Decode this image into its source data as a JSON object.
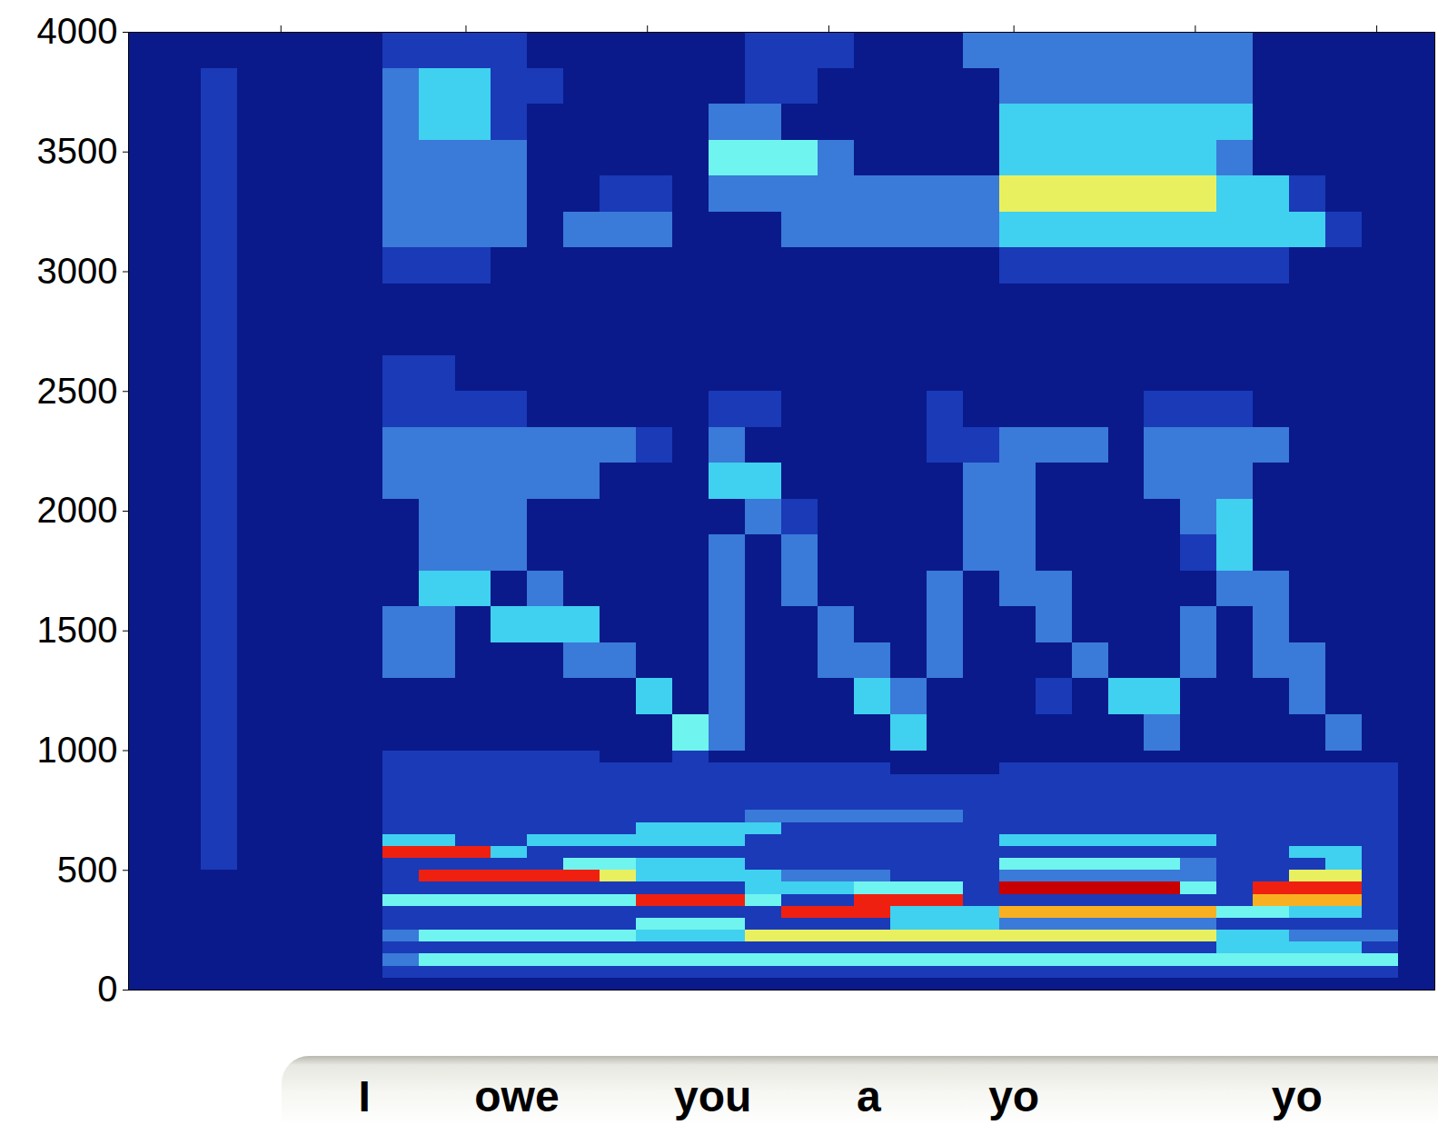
{
  "chart_data": {
    "type": "heatmap",
    "tick_labels": "y",
    "grid": false,
    "xlim": [
      0,
      36
    ],
    "xticks": [
      4.2,
      9.3,
      14.3,
      19.3,
      24.4,
      29.4,
      34.4
    ],
    "ylim": [
      0,
      4000
    ],
    "yticks": [
      0,
      500,
      1000,
      1500,
      2000,
      2500,
      3000,
      3500,
      4000
    ],
    "value_range": [
      0,
      10
    ],
    "time_bins": [
      0,
      1,
      2,
      3,
      4,
      5,
      6,
      7,
      8,
      9,
      10,
      11,
      12,
      13,
      14,
      15,
      16,
      17,
      18,
      19,
      20,
      21,
      22,
      23,
      24,
      25,
      26,
      27,
      28,
      29,
      30,
      31,
      32,
      33,
      34,
      35,
      36
    ],
    "freq_bins": [
      0,
      50,
      100,
      150,
      200,
      250,
      300,
      350,
      400,
      450,
      500,
      550,
      600,
      650,
      700,
      750,
      800,
      850,
      900,
      950,
      1000,
      1150,
      1300,
      1450,
      1600,
      1750,
      1900,
      2050,
      2200,
      2350,
      2500,
      2650,
      2800,
      2950,
      3100,
      3250,
      3400,
      3550,
      3700,
      3850,
      4000
    ],
    "cells": [
      [
        1,
        1,
        1,
        1,
        1,
        1,
        1,
        1,
        1,
        1,
        1,
        1,
        1,
        1,
        1,
        1,
        1,
        1,
        1,
        1,
        1,
        1,
        1,
        1,
        1,
        1,
        1,
        1,
        1,
        1,
        1,
        1,
        1,
        1,
        1,
        1
      ],
      [
        1,
        1,
        1,
        1,
        1,
        1,
        1,
        2,
        2,
        2,
        2,
        2,
        2,
        2,
        2,
        2,
        2,
        2,
        2,
        2,
        2,
        2,
        2,
        2,
        2,
        2,
        2,
        2,
        2,
        2,
        2,
        2,
        2,
        2,
        2,
        1
      ],
      [
        1,
        1,
        1,
        1,
        1,
        1,
        1,
        3,
        5,
        5,
        5,
        5,
        5,
        5,
        5,
        5,
        5,
        5,
        5,
        5,
        5,
        5,
        5,
        5,
        5,
        5,
        5,
        5,
        5,
        5,
        5,
        5,
        5,
        5,
        5,
        1
      ],
      [
        1,
        1,
        1,
        1,
        1,
        1,
        1,
        2,
        2,
        2,
        2,
        2,
        2,
        2,
        2,
        2,
        2,
        2,
        2,
        2,
        2,
        2,
        2,
        2,
        2,
        2,
        2,
        2,
        2,
        2,
        4,
        4,
        4,
        4,
        2,
        1
      ],
      [
        1,
        1,
        1,
        1,
        1,
        1,
        1,
        3,
        5,
        5,
        5,
        5,
        5,
        5,
        4,
        4,
        4,
        6,
        6,
        6,
        6,
        6,
        6,
        6,
        6,
        6,
        6,
        6,
        6,
        6,
        4,
        4,
        3,
        3,
        3,
        1
      ],
      [
        1,
        1,
        1,
        1,
        1,
        1,
        1,
        2,
        2,
        2,
        2,
        2,
        2,
        2,
        5,
        5,
        5,
        2,
        2,
        2,
        2,
        4,
        4,
        4,
        3,
        3,
        3,
        3,
        3,
        3,
        2,
        2,
        2,
        2,
        2,
        1
      ],
      [
        1,
        1,
        1,
        1,
        1,
        1,
        1,
        2,
        2,
        2,
        2,
        2,
        2,
        2,
        2,
        2,
        2,
        2,
        8,
        8,
        8,
        4,
        4,
        4,
        7,
        7,
        7,
        7,
        7,
        7,
        5,
        5,
        4,
        4,
        2,
        1
      ],
      [
        1,
        1,
        1,
        1,
        1,
        1,
        1,
        5,
        5,
        5,
        5,
        5,
        5,
        5,
        8,
        8,
        8,
        5,
        2,
        2,
        8,
        8,
        8,
        2,
        2,
        2,
        2,
        2,
        2,
        2,
        2,
        7,
        7,
        7,
        2,
        1
      ],
      [
        1,
        1,
        1,
        1,
        1,
        1,
        1,
        2,
        2,
        2,
        2,
        2,
        2,
        2,
        2,
        2,
        2,
        4,
        4,
        4,
        5,
        5,
        5,
        2,
        9,
        9,
        9,
        9,
        9,
        5,
        2,
        8,
        8,
        8,
        2,
        1
      ],
      [
        1,
        1,
        1,
        1,
        1,
        1,
        1,
        2,
        8,
        8,
        8,
        8,
        8,
        6,
        4,
        4,
        4,
        4,
        3,
        3,
        3,
        2,
        2,
        2,
        3,
        3,
        3,
        3,
        3,
        3,
        2,
        2,
        6,
        6,
        2,
        1
      ],
      [
        1,
        1,
        2,
        1,
        1,
        1,
        1,
        2,
        2,
        2,
        2,
        2,
        5,
        5,
        4,
        4,
        4,
        2,
        2,
        2,
        2,
        2,
        2,
        2,
        5,
        5,
        5,
        5,
        5,
        3,
        2,
        2,
        2,
        4,
        2,
        1
      ],
      [
        1,
        1,
        2,
        1,
        1,
        1,
        1,
        8,
        8,
        8,
        4,
        2,
        2,
        2,
        2,
        2,
        2,
        2,
        2,
        2,
        2,
        2,
        2,
        2,
        2,
        2,
        2,
        2,
        2,
        2,
        2,
        2,
        4,
        4,
        2,
        1
      ],
      [
        1,
        1,
        2,
        1,
        1,
        1,
        1,
        4,
        4,
        2,
        2,
        4,
        4,
        4,
        4,
        4,
        4,
        2,
        2,
        2,
        2,
        2,
        2,
        2,
        4,
        4,
        4,
        4,
        4,
        4,
        2,
        2,
        2,
        2,
        2,
        1
      ],
      [
        1,
        1,
        2,
        1,
        1,
        1,
        1,
        2,
        2,
        2,
        2,
        2,
        2,
        2,
        4,
        4,
        4,
        4,
        2,
        2,
        2,
        2,
        2,
        2,
        2,
        2,
        2,
        2,
        2,
        2,
        2,
        2,
        2,
        2,
        2,
        1
      ],
      [
        1,
        1,
        2,
        1,
        1,
        1,
        1,
        2,
        2,
        2,
        2,
        2,
        2,
        2,
        2,
        2,
        2,
        3,
        3,
        3,
        3,
        3,
        3,
        2,
        2,
        2,
        2,
        2,
        2,
        2,
        2,
        2,
        2,
        2,
        2,
        1
      ],
      [
        1,
        1,
        2,
        1,
        1,
        1,
        1,
        2,
        2,
        2,
        2,
        2,
        2,
        2,
        2,
        2,
        2,
        2,
        2,
        2,
        2,
        2,
        2,
        2,
        2,
        2,
        2,
        2,
        2,
        2,
        2,
        2,
        2,
        2,
        2,
        1
      ],
      [
        1,
        1,
        2,
        1,
        1,
        1,
        1,
        2,
        2,
        2,
        2,
        2,
        2,
        2,
        2,
        2,
        2,
        2,
        2,
        2,
        2,
        2,
        2,
        2,
        2,
        2,
        2,
        2,
        2,
        2,
        2,
        2,
        2,
        2,
        2,
        1
      ],
      [
        1,
        1,
        2,
        1,
        1,
        1,
        1,
        2,
        2,
        2,
        2,
        2,
        2,
        2,
        2,
        2,
        2,
        2,
        2,
        2,
        2,
        2,
        2,
        2,
        2,
        2,
        2,
        2,
        2,
        2,
        2,
        2,
        2,
        2,
        2,
        1
      ],
      [
        1,
        1,
        2,
        1,
        1,
        1,
        1,
        2,
        2,
        2,
        2,
        2,
        2,
        2,
        2,
        2,
        2,
        2,
        2,
        2,
        2,
        1,
        1,
        1,
        2,
        2,
        2,
        2,
        2,
        2,
        2,
        2,
        2,
        2,
        2,
        1
      ],
      [
        1,
        1,
        2,
        1,
        1,
        1,
        1,
        2,
        2,
        2,
        2,
        2,
        2,
        1,
        1,
        2,
        1,
        1,
        1,
        1,
        1,
        1,
        1,
        1,
        1,
        1,
        1,
        1,
        1,
        1,
        1,
        1,
        1,
        1,
        1,
        1
      ],
      [
        1,
        1,
        2,
        1,
        1,
        1,
        1,
        1,
        1,
        1,
        1,
        1,
        1,
        1,
        1,
        5,
        3,
        1,
        1,
        1,
        1,
        4,
        1,
        1,
        1,
        1,
        1,
        1,
        3,
        1,
        1,
        1,
        1,
        3,
        1,
        1
      ],
      [
        1,
        1,
        2,
        1,
        1,
        1,
        1,
        1,
        1,
        1,
        1,
        1,
        1,
        1,
        4,
        1,
        3,
        1,
        1,
        1,
        4,
        3,
        1,
        1,
        1,
        2,
        1,
        4,
        4,
        1,
        1,
        1,
        3,
        1,
        1,
        1
      ],
      [
        1,
        1,
        2,
        1,
        1,
        1,
        1,
        3,
        3,
        1,
        1,
        1,
        3,
        3,
        1,
        1,
        3,
        1,
        1,
        3,
        3,
        1,
        3,
        1,
        1,
        1,
        3,
        1,
        1,
        3,
        1,
        3,
        3,
        1,
        1,
        1
      ],
      [
        1,
        1,
        2,
        1,
        1,
        1,
        1,
        3,
        3,
        1,
        4,
        4,
        4,
        1,
        1,
        1,
        3,
        1,
        1,
        3,
        1,
        1,
        3,
        1,
        1,
        3,
        1,
        1,
        1,
        3,
        1,
        3,
        1,
        1,
        1,
        1
      ],
      [
        1,
        1,
        2,
        1,
        1,
        1,
        1,
        1,
        4,
        4,
        1,
        3,
        1,
        1,
        1,
        1,
        3,
        1,
        3,
        1,
        1,
        1,
        3,
        1,
        3,
        3,
        1,
        1,
        1,
        1,
        3,
        3,
        1,
        1,
        1,
        1
      ],
      [
        1,
        1,
        2,
        1,
        1,
        1,
        1,
        1,
        3,
        3,
        3,
        1,
        1,
        1,
        1,
        1,
        3,
        1,
        3,
        1,
        1,
        1,
        1,
        3,
        3,
        1,
        1,
        1,
        1,
        2,
        4,
        1,
        1,
        1,
        1,
        1
      ],
      [
        1,
        1,
        2,
        1,
        1,
        1,
        1,
        1,
        3,
        3,
        3,
        1,
        1,
        1,
        1,
        1,
        1,
        3,
        2,
        1,
        1,
        1,
        1,
        3,
        3,
        1,
        1,
        1,
        1,
        3,
        4,
        1,
        1,
        1,
        1,
        1
      ],
      [
        1,
        1,
        2,
        1,
        1,
        1,
        1,
        3,
        3,
        3,
        3,
        3,
        3,
        1,
        1,
        1,
        4,
        4,
        1,
        1,
        1,
        1,
        1,
        3,
        3,
        1,
        1,
        1,
        3,
        3,
        3,
        1,
        1,
        1,
        1,
        1
      ],
      [
        1,
        1,
        2,
        1,
        1,
        1,
        1,
        3,
        3,
        3,
        3,
        3,
        3,
        3,
        2,
        1,
        3,
        1,
        1,
        1,
        1,
        1,
        2,
        2,
        3,
        3,
        3,
        1,
        3,
        3,
        3,
        3,
        1,
        1,
        1,
        1
      ],
      [
        1,
        1,
        2,
        1,
        1,
        1,
        1,
        2,
        2,
        2,
        2,
        1,
        1,
        1,
        1,
        1,
        2,
        2,
        1,
        1,
        1,
        1,
        2,
        1,
        1,
        1,
        1,
        1,
        2,
        2,
        2,
        1,
        1,
        1,
        1,
        1
      ],
      [
        1,
        1,
        2,
        1,
        1,
        1,
        1,
        2,
        2,
        1,
        1,
        1,
        1,
        1,
        1,
        1,
        1,
        1,
        1,
        1,
        1,
        1,
        1,
        1,
        1,
        1,
        1,
        1,
        1,
        1,
        1,
        1,
        1,
        1,
        1,
        1
      ],
      [
        1,
        1,
        2,
        1,
        1,
        1,
        1,
        1,
        1,
        1,
        1,
        1,
        1,
        1,
        1,
        1,
        1,
        1,
        1,
        1,
        1,
        1,
        1,
        1,
        1,
        1,
        1,
        1,
        1,
        1,
        1,
        1,
        1,
        1,
        1,
        1
      ],
      [
        1,
        1,
        2,
        1,
        1,
        1,
        1,
        1,
        1,
        1,
        1,
        1,
        1,
        1,
        1,
        1,
        1,
        1,
        1,
        1,
        1,
        1,
        1,
        1,
        1,
        1,
        1,
        1,
        1,
        1,
        1,
        1,
        1,
        1,
        1,
        1
      ],
      [
        1,
        1,
        2,
        1,
        1,
        1,
        1,
        2,
        2,
        2,
        1,
        1,
        1,
        1,
        1,
        1,
        1,
        1,
        1,
        1,
        1,
        1,
        1,
        1,
        2,
        2,
        2,
        2,
        2,
        2,
        2,
        2,
        1,
        1,
        1,
        1
      ],
      [
        1,
        1,
        2,
        1,
        1,
        1,
        1,
        3,
        3,
        3,
        3,
        1,
        3,
        3,
        3,
        1,
        1,
        1,
        3,
        3,
        3,
        3,
        3,
        3,
        4,
        4,
        4,
        4,
        4,
        4,
        4,
        4,
        4,
        2,
        1,
        1
      ],
      [
        1,
        1,
        2,
        1,
        1,
        1,
        1,
        3,
        3,
        3,
        3,
        1,
        1,
        2,
        2,
        1,
        3,
        3,
        3,
        3,
        3,
        3,
        3,
        3,
        6,
        6,
        6,
        6,
        6,
        6,
        4,
        4,
        2,
        1,
        1,
        1
      ],
      [
        1,
        1,
        2,
        1,
        1,
        1,
        1,
        3,
        3,
        3,
        3,
        1,
        1,
        1,
        1,
        1,
        5,
        5,
        5,
        3,
        1,
        1,
        1,
        1,
        4,
        4,
        4,
        4,
        4,
        4,
        3,
        1,
        1,
        1,
        1,
        1
      ],
      [
        1,
        1,
        2,
        1,
        1,
        1,
        1,
        3,
        4,
        4,
        2,
        1,
        1,
        1,
        1,
        1,
        3,
        3,
        1,
        1,
        1,
        1,
        1,
        1,
        4,
        4,
        4,
        4,
        4,
        4,
        4,
        1,
        1,
        1,
        1,
        1
      ],
      [
        1,
        1,
        2,
        1,
        1,
        1,
        1,
        3,
        4,
        4,
        2,
        2,
        1,
        1,
        1,
        1,
        1,
        2,
        2,
        1,
        1,
        1,
        1,
        1,
        3,
        3,
        3,
        3,
        3,
        3,
        3,
        1,
        1,
        1,
        1,
        1
      ],
      [
        1,
        1,
        1,
        1,
        1,
        1,
        1,
        2,
        2,
        2,
        2,
        1,
        1,
        1,
        1,
        1,
        1,
        2,
        2,
        2,
        1,
        1,
        1,
        3,
        3,
        3,
        3,
        3,
        3,
        3,
        3,
        1,
        1,
        1,
        1,
        1
      ]
    ],
    "annotations": [
      {
        "text": "I",
        "x": 6.5
      },
      {
        "text": "owe",
        "x": 10.7
      },
      {
        "text": "you",
        "x": 16.1
      },
      {
        "text": "a",
        "x": 20.4
      },
      {
        "text": "yo",
        "x": 24.4
      },
      {
        "text": "yo",
        "x": 32.2
      }
    ]
  }
}
